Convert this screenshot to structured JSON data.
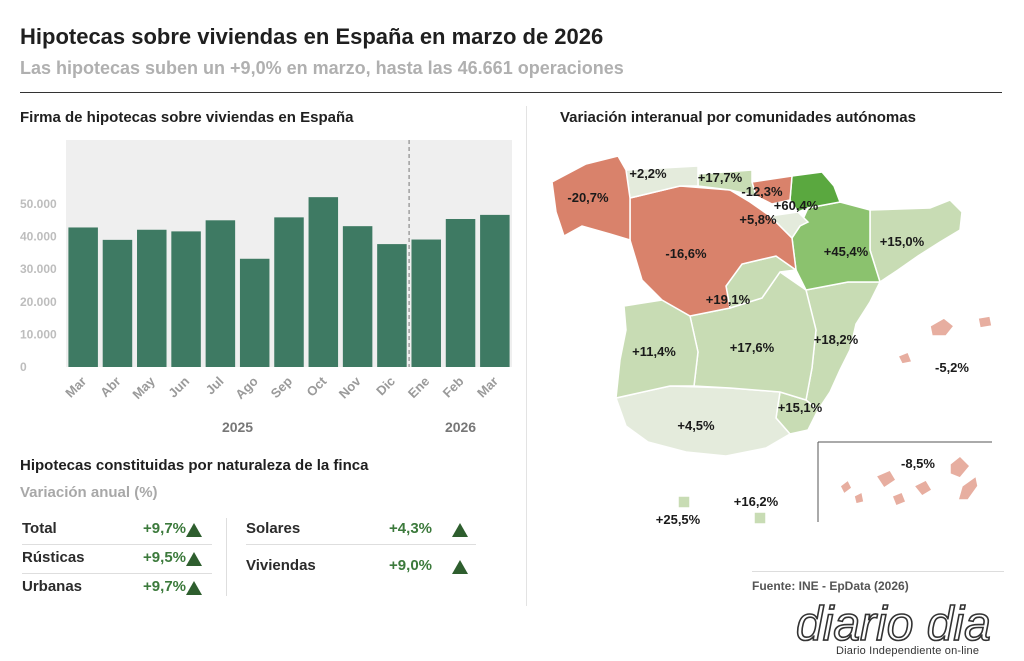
{
  "header": {
    "title": "Hipotecas sobre viviendas en España en marzo de 2026",
    "subtitle": "Las hipotecas suben un +9,0% en marzo, hasta las 46.661 operaciones"
  },
  "chart_data": [
    {
      "type": "bar",
      "title": "Firma de hipotecas sobre viviendas en España",
      "categories": [
        "Mar",
        "Abr",
        "May",
        "Jun",
        "Jul",
        "Ago",
        "Sep",
        "Oct",
        "Nov",
        "Dic",
        "Ene",
        "Feb",
        "Mar"
      ],
      "year_groups": [
        {
          "label": "2025",
          "from": 0,
          "to": 9
        },
        {
          "label": "2026",
          "from": 10,
          "to": 12
        }
      ],
      "values": [
        42800,
        39000,
        42100,
        41600,
        45000,
        33200,
        45900,
        52100,
        43200,
        37700,
        39100,
        45400,
        46661
      ],
      "y_ticks": [
        0,
        10000,
        20000,
        30000,
        40000,
        50000
      ],
      "y_tick_labels": [
        "0",
        "10.000",
        "20.000",
        "30.000",
        "40.000",
        "50.000"
      ],
      "ylim": [
        0,
        60000
      ],
      "grid": false,
      "bar_color": "#3e7a63",
      "divider_between": [
        9,
        10
      ]
    },
    {
      "type": "table",
      "title": "Hipotecas constituidas por naturaleza de la finca",
      "subtitle": "Variación anual (%)",
      "rows": [
        {
          "name": "Total",
          "value": "+9,7%",
          "trend": "up"
        },
        {
          "name": "Rústicas",
          "value": "+9,5%",
          "trend": "up"
        },
        {
          "name": "Urbanas",
          "value": "+9,7%",
          "trend": "up"
        },
        {
          "name": "Solares",
          "value": "+4,3%",
          "trend": "up"
        },
        {
          "name": "Viviendas",
          "value": "+9,0%",
          "trend": "up"
        }
      ]
    },
    {
      "type": "map",
      "title": "Variación interanual por comunidades autónomas",
      "regions": [
        {
          "name": "Galicia",
          "label": "-20,7%",
          "value": -20.7
        },
        {
          "name": "Asturias",
          "label": "+2,2%",
          "value": 2.2
        },
        {
          "name": "Cantabria",
          "label": "+17,7%",
          "value": 17.7
        },
        {
          "name": "País Vasco",
          "label": "-12,3%",
          "value": -12.3
        },
        {
          "name": "Navarra",
          "label": "+60,4%",
          "value": 60.4
        },
        {
          "name": "La Rioja",
          "label": "+5,8%",
          "value": 5.8
        },
        {
          "name": "Castilla y León",
          "label": "-16,6%",
          "value": -16.6
        },
        {
          "name": "Aragón",
          "label": "+45,4%",
          "value": 45.4
        },
        {
          "name": "Cataluña",
          "label": "+15,0%",
          "value": 15.0
        },
        {
          "name": "Madrid",
          "label": "+19,1%",
          "value": 19.1
        },
        {
          "name": "Extremadura",
          "label": "+11,4%",
          "value": 11.4
        },
        {
          "name": "Castilla-La Mancha",
          "label": "+17,6%",
          "value": 17.6
        },
        {
          "name": "C. Valenciana",
          "label": "+18,2%",
          "value": 18.2
        },
        {
          "name": "Baleares",
          "label": "-5,2%",
          "value": -5.2
        },
        {
          "name": "Murcia",
          "label": "+15,1%",
          "value": 15.1
        },
        {
          "name": "Andalucía",
          "label": "+4,5%",
          "value": 4.5
        },
        {
          "name": "Ceuta",
          "label": "+25,5%",
          "value": 25.5
        },
        {
          "name": "Melilla",
          "label": "+16,2%",
          "value": 16.2
        },
        {
          "name": "Canarias",
          "label": "-8,5%",
          "value": -8.5
        }
      ],
      "colors": {
        "strong_negative": "#d9826b",
        "mild_negative": "#e7aea0",
        "low_positive": "#e4ebdc",
        "mid_positive": "#c8dcb4",
        "high_positive": "#8bc26e",
        "top_positive": "#5aa83f"
      }
    }
  ],
  "footer": {
    "source": "Fuente: INE - EpData (2026)",
    "logo_text": "diario dia",
    "logo_tagline": "Diario Independiente on-line"
  }
}
